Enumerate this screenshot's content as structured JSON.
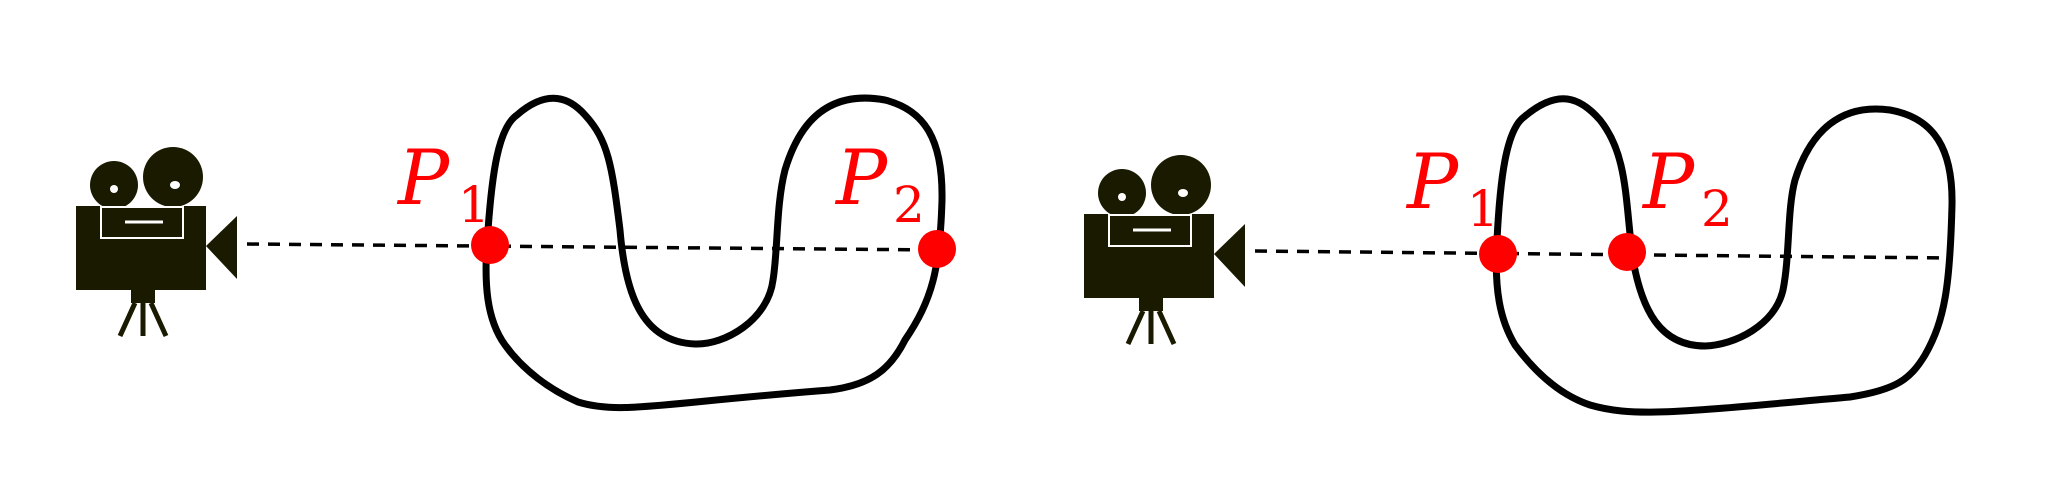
{
  "colors": {
    "curve": "#000000",
    "ray": "#000000",
    "point": "#ff0000",
    "label": "#ff0000",
    "camera": "#1a1a00"
  },
  "icons": [
    "movie-camera-icon"
  ],
  "panels": [
    {
      "points": [
        {
          "id": "p1",
          "letter": "P",
          "sub": "1"
        },
        {
          "id": "p2",
          "letter": "P",
          "sub": "2"
        }
      ]
    },
    {
      "points": [
        {
          "id": "p1",
          "letter": "P",
          "sub": "1"
        },
        {
          "id": "p2",
          "letter": "P",
          "sub": "2"
        }
      ]
    }
  ]
}
